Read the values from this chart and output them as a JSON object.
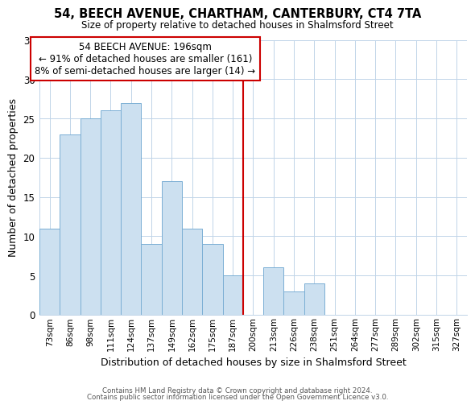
{
  "title": "54, BEECH AVENUE, CHARTHAM, CANTERBURY, CT4 7TA",
  "subtitle": "Size of property relative to detached houses in Shalmsford Street",
  "xlabel": "Distribution of detached houses by size in Shalmsford Street",
  "ylabel": "Number of detached properties",
  "bar_labels": [
    "73sqm",
    "86sqm",
    "98sqm",
    "111sqm",
    "124sqm",
    "137sqm",
    "149sqm",
    "162sqm",
    "175sqm",
    "187sqm",
    "200sqm",
    "213sqm",
    "226sqm",
    "238sqm",
    "251sqm",
    "264sqm",
    "277sqm",
    "289sqm",
    "302sqm",
    "315sqm",
    "327sqm"
  ],
  "bar_values": [
    11,
    23,
    25,
    26,
    27,
    9,
    17,
    11,
    9,
    5,
    0,
    6,
    3,
    4,
    0,
    0,
    0,
    0,
    0,
    0,
    0
  ],
  "bar_color": "#cce0f0",
  "bar_edge_color": "#7bafd4",
  "vline_color": "#cc0000",
  "annotation_title": "54 BEECH AVENUE: 196sqm",
  "annotation_line1": "← 91% of detached houses are smaller (161)",
  "annotation_line2": "8% of semi-detached houses are larger (14) →",
  "annotation_box_color": "#ffffff",
  "annotation_box_edge_color": "#cc0000",
  "ylim": [
    0,
    35
  ],
  "yticks": [
    0,
    5,
    10,
    15,
    20,
    25,
    30,
    35
  ],
  "footer1": "Contains HM Land Registry data © Crown copyright and database right 2024.",
  "footer2": "Contains public sector information licensed under the Open Government Licence v3.0.",
  "bg_color": "#ffffff",
  "grid_color": "#c0d4e8"
}
